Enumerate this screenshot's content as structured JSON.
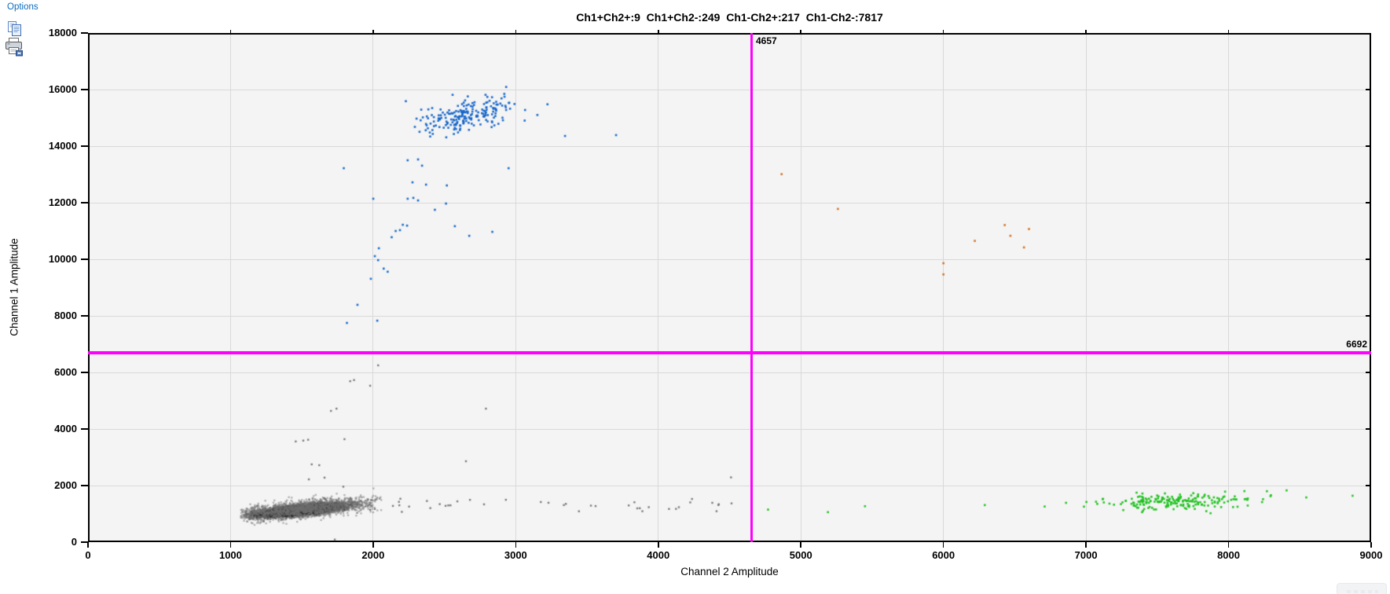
{
  "toolbar": {
    "options_label": "Options",
    "icons": [
      "copy-icon",
      "print-icon"
    ]
  },
  "chart_data": {
    "type": "scatter",
    "title": "Ch1+Ch2+:9  Ch1+Ch2-:249  Ch1-Ch2+:217  Ch1-Ch2-:7817",
    "xlabel": "Channel 2 Amplitude",
    "ylabel": "Channel 1 Amplitude",
    "xlim": [
      0,
      9000
    ],
    "ylim": [
      0,
      18000
    ],
    "x_ticks": [
      0,
      1000,
      2000,
      3000,
      4000,
      5000,
      6000,
      7000,
      8000,
      9000
    ],
    "y_ticks": [
      0,
      2000,
      4000,
      6000,
      8000,
      10000,
      12000,
      14000,
      16000,
      18000
    ],
    "grid": true,
    "plot_bg": "#f4f4f4",
    "grid_color": "#d9d9d9",
    "legend": "none",
    "threshold": {
      "x": 4657,
      "y": 6692,
      "x_label": "4657",
      "y_label": "6692",
      "color": "#FF00FF"
    },
    "quadrant_counts": {
      "ch1pos_ch2pos": 9,
      "ch1pos_ch2neg": 249,
      "ch1neg_ch2pos": 217,
      "ch1neg_ch2neg": 7817
    },
    "series": [
      {
        "name": "ch1-ch2-negative-core",
        "color": "#1c1c1c",
        "alpha": 0.28,
        "size": 2.5,
        "gen": {
          "seed": 7,
          "count": 5200,
          "cx": 1490,
          "cy": 1130,
          "sx": 150,
          "sy": 85,
          "slope": 0.5,
          "clip": [
            1080,
            2000,
            650,
            1850
          ]
        }
      },
      {
        "name": "ch1-ch2-negative-fringe",
        "color": "#6e6e6e",
        "alpha": 0.5,
        "size": 2.3,
        "gen": {
          "seed": 11,
          "count": 1700,
          "cx": 1505,
          "cy": 1175,
          "sx": 240,
          "sy": 145,
          "slope": 0.45,
          "clip": [
            1060,
            2060,
            550,
            2050
          ]
        }
      },
      {
        "name": "negative-rain-horizontal",
        "color": "#707070",
        "alpha": 0.9,
        "size": 2.4,
        "gen": {
          "seed": 23,
          "count": 42,
          "dist": "uniform-x",
          "xmin": 1950,
          "xmax": 4660,
          "cy": 1290,
          "sy": 140,
          "clip": [
            1900,
            4700,
            950,
            1750
          ]
        }
      },
      {
        "name": "negative-rain-vertical",
        "color": "#707070",
        "alpha": 0.9,
        "size": 2.4,
        "points": [
          [
            2035,
            6250
          ],
          [
            1839,
            5690
          ],
          [
            1866,
            5730
          ],
          [
            1979,
            5530
          ],
          [
            1704,
            4640
          ],
          [
            1743,
            4720
          ],
          [
            2791,
            4720
          ],
          [
            1799,
            3640
          ],
          [
            1457,
            3560
          ],
          [
            1510,
            3590
          ],
          [
            1544,
            3620
          ],
          [
            1569,
            2750
          ],
          [
            1622,
            2720
          ],
          [
            2651,
            2860
          ],
          [
            1659,
            2280
          ],
          [
            1549,
            2220
          ],
          [
            4510,
            2290
          ],
          [
            1791,
            1960
          ],
          [
            1731,
            90
          ],
          [
            1230,
            740
          ]
        ]
      },
      {
        "name": "ch1-positive-cluster",
        "color": "#1364C8",
        "alpha": 0.95,
        "size": 2.6,
        "gen": {
          "seed": 41,
          "count": 205,
          "cx": 2665,
          "cy": 15120,
          "sx": 170,
          "sy": 310,
          "slope": 0.9,
          "clip": [
            2220,
            3230,
            13850,
            16160
          ]
        }
      },
      {
        "name": "ch1-positive-rain",
        "color": "#1364C8",
        "alpha": 0.95,
        "size": 2.6,
        "points": [
          [
            3346,
            14360
          ],
          [
            3704,
            14390
          ],
          [
            1794,
            13220
          ],
          [
            2950,
            13220
          ],
          [
            2242,
            13500
          ],
          [
            2315,
            13530
          ],
          [
            2343,
            13310
          ],
          [
            2276,
            12720
          ],
          [
            2371,
            12640
          ],
          [
            2517,
            12610
          ],
          [
            2282,
            12170
          ],
          [
            2242,
            12140
          ],
          [
            2315,
            12080
          ],
          [
            2001,
            12140
          ],
          [
            2511,
            11970
          ],
          [
            2433,
            11750
          ],
          [
            2238,
            11190
          ],
          [
            2208,
            11220
          ],
          [
            2573,
            11170
          ],
          [
            2188,
            11030
          ],
          [
            2158,
            11000
          ],
          [
            2674,
            10830
          ],
          [
            2836,
            10970
          ],
          [
            2130,
            10780
          ],
          [
            2040,
            10390
          ],
          [
            2012,
            10110
          ],
          [
            2035,
            9970
          ],
          [
            2074,
            9670
          ],
          [
            2102,
            9560
          ],
          [
            1984,
            9310
          ],
          [
            1890,
            8390
          ],
          [
            1816,
            7750
          ],
          [
            2029,
            7830
          ]
        ]
      },
      {
        "name": "double-positive-droplets",
        "color": "#D26E1C",
        "alpha": 0.95,
        "size": 2.6,
        "points": [
          [
            4865,
            13010
          ],
          [
            5260,
            11780
          ],
          [
            6000,
            9860
          ],
          [
            6000,
            9465
          ],
          [
            6220,
            10650
          ],
          [
            6430,
            11210
          ],
          [
            6470,
            10830
          ],
          [
            6600,
            11070
          ],
          [
            6565,
            10420
          ]
        ]
      },
      {
        "name": "ch2-positive-cluster",
        "color": "#1EC11E",
        "alpha": 0.95,
        "size": 2.6,
        "gen": {
          "seed": 61,
          "count": 200,
          "cx": 7590,
          "cy": 1430,
          "sx": 290,
          "sy": 140,
          "slope": 0.1,
          "clip": [
            6880,
            8660,
            1000,
            1950
          ]
        }
      },
      {
        "name": "ch2-positive-strays",
        "color": "#1EC11E",
        "alpha": 0.95,
        "size": 2.6,
        "points": [
          [
            4770,
            1150
          ],
          [
            5190,
            1060
          ],
          [
            5450,
            1270
          ],
          [
            6290,
            1310
          ],
          [
            6710,
            1260
          ],
          [
            6860,
            1390
          ],
          [
            8269,
            1800
          ],
          [
            8407,
            1830
          ],
          [
            8545,
            1580
          ],
          [
            8870,
            1640
          ]
        ]
      }
    ]
  }
}
